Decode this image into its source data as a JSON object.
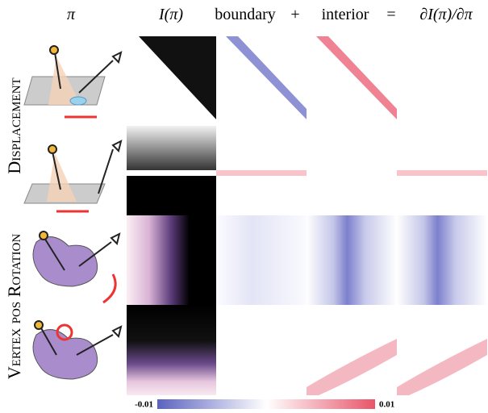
{
  "header": {
    "columns": [
      "π",
      "I(π)",
      "boundary",
      "+",
      "interior",
      "=",
      "∂I(π)/∂π"
    ]
  },
  "rows": [
    "Displacement",
    "Vertex pos Rotation"
  ],
  "colorbar": {
    "min_label": "-0.01",
    "max_label": "0.01"
  }
}
